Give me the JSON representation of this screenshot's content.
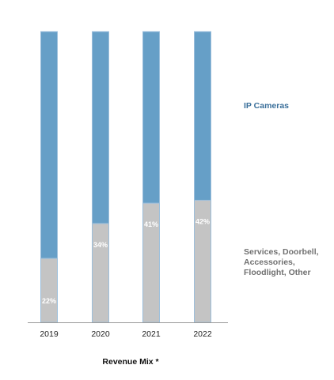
{
  "chart_data": {
    "type": "bar",
    "stacked": true,
    "percent_stacked": true,
    "categories": [
      "2019",
      "2020",
      "2021",
      "2022"
    ],
    "series": [
      {
        "name": "Services, Doorbell, Accessories, Floodlight, Other",
        "values": [
          22,
          34,
          41,
          42
        ],
        "labels": [
          "22%",
          "34%",
          "41%",
          "42%"
        ],
        "color": "#c4c4c4"
      },
      {
        "name": "IP Cameras",
        "values": [
          78,
          66,
          59,
          58
        ],
        "color": "#669fc7"
      }
    ],
    "ylim": [
      0,
      100
    ],
    "xlabel": "Revenue Mix *",
    "ylabel": "",
    "title": "",
    "grid": false,
    "legend": "right",
    "axis_color": "#999999",
    "bar_border_color": "#9cbfdc",
    "data_label_color": "#ffffff",
    "ip_legend_color": "#3a6f9a",
    "services_legend_color": "#707070"
  }
}
